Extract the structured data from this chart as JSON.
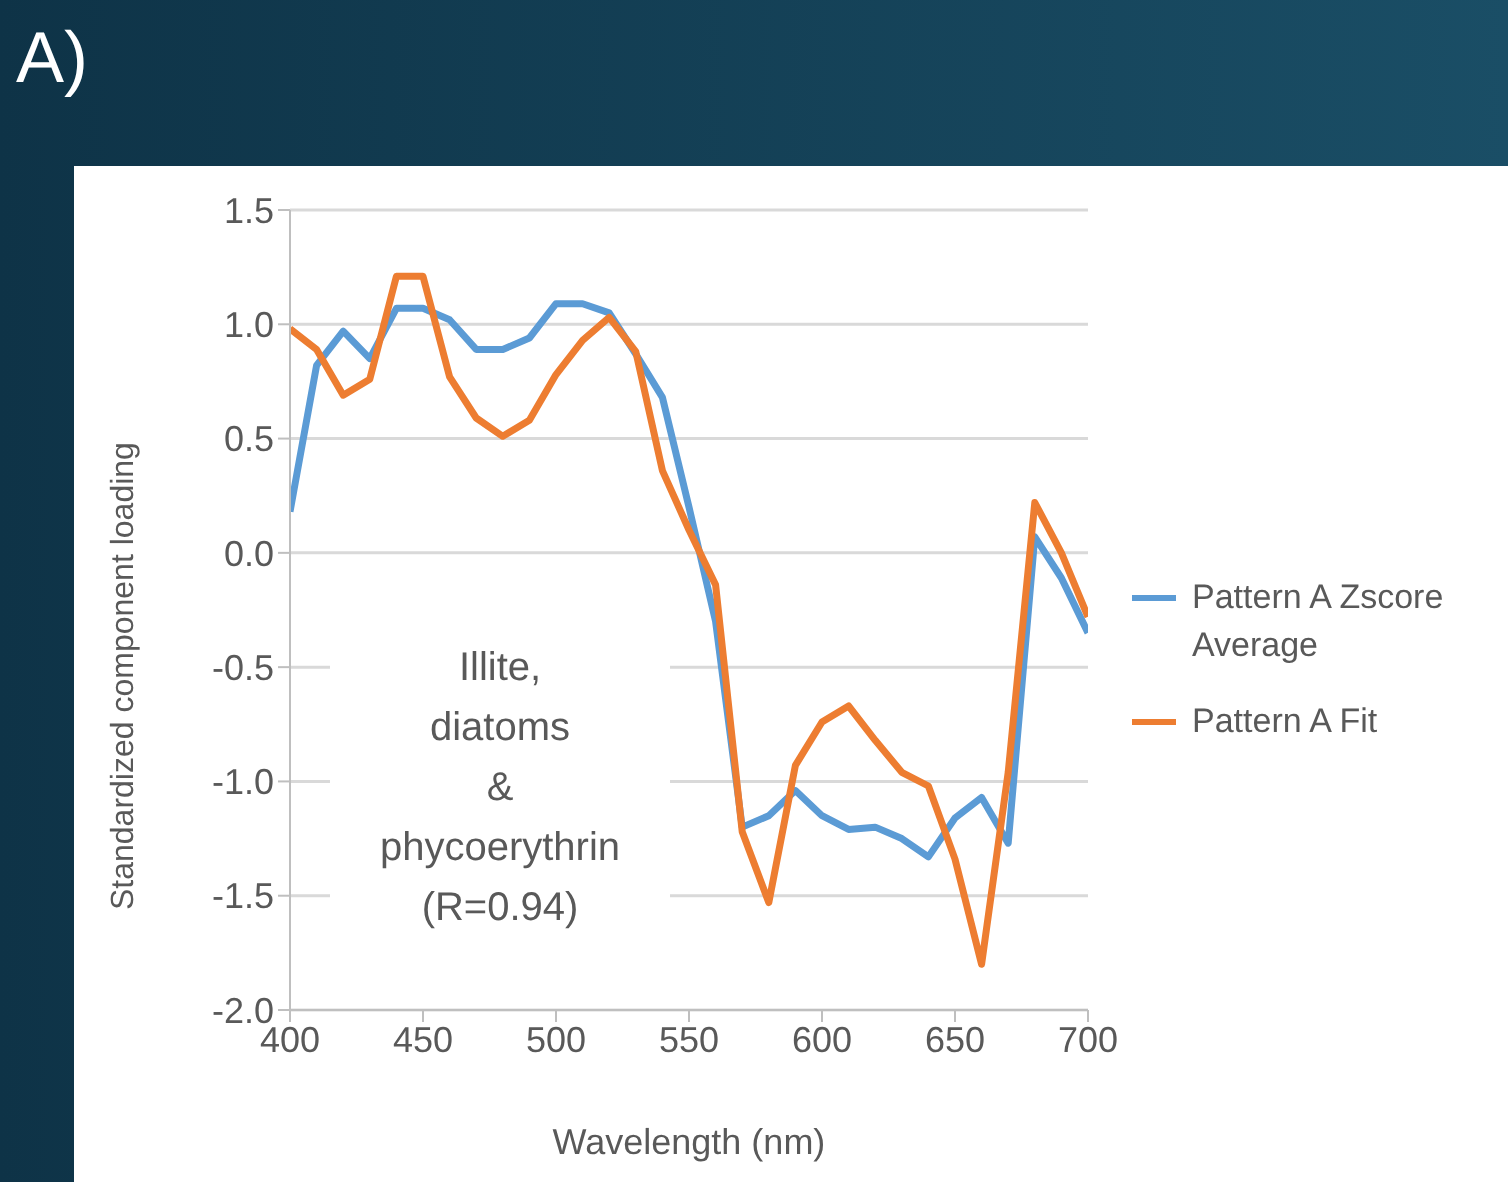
{
  "chart_data": {
    "type": "line",
    "title": "A)",
    "xlabel": "Wavelength (nm)",
    "ylabel": "Standardized component loading",
    "x": [
      400,
      410,
      420,
      430,
      440,
      450,
      460,
      470,
      480,
      490,
      500,
      510,
      520,
      530,
      540,
      550,
      560,
      570,
      580,
      590,
      600,
      610,
      620,
      630,
      640,
      650,
      660,
      670,
      680,
      690,
      700
    ],
    "series": [
      {
        "name": "Pattern A Zscore Average",
        "color": "#5b9bd5",
        "values": [
          0.18,
          0.82,
          0.97,
          0.85,
          1.07,
          1.07,
          1.02,
          0.89,
          0.89,
          0.94,
          1.09,
          1.09,
          1.05,
          0.87,
          0.68,
          0.2,
          -0.3,
          -1.2,
          -1.15,
          -1.04,
          -1.15,
          -1.21,
          -1.2,
          -1.25,
          -1.33,
          -1.16,
          -1.07,
          -1.27,
          0.07,
          -0.11,
          -0.35
        ]
      },
      {
        "name": "Pattern A Fit",
        "color": "#ed7d31",
        "values": [
          0.98,
          0.89,
          0.69,
          0.76,
          1.21,
          1.21,
          0.77,
          0.59,
          0.51,
          0.58,
          0.78,
          0.93,
          1.03,
          0.88,
          0.36,
          0.1,
          -0.14,
          -1.22,
          -1.53,
          -0.93,
          -0.74,
          -0.67,
          -0.82,
          -0.96,
          -1.02,
          -1.34,
          -1.8,
          -0.96,
          0.22,
          0.0,
          -0.28
        ]
      }
    ],
    "xlim": [
      400,
      700
    ],
    "xticks": [
      400,
      450,
      500,
      550,
      600,
      650,
      700
    ],
    "ylim": [
      -2,
      1.5
    ],
    "yticks": [
      {
        "value": 1.5,
        "label": "1.5"
      },
      {
        "value": 1,
        "label": "1.0"
      },
      {
        "value": 0.5,
        "label": "0.5"
      },
      {
        "value": 0,
        "label": "0.0"
      },
      {
        "value": -0.5,
        "label": "-0.5"
      },
      {
        "value": -1,
        "label": "-1.0"
      },
      {
        "value": -1.5,
        "label": "-1.5"
      },
      {
        "value": -2,
        "label": "-2.0"
      }
    ],
    "grid": "y",
    "legend": "right",
    "marker": "none",
    "line_style": "solid",
    "annotations": [
      "Illite, diatoms & phycoerythrin (R=0.94)"
    ]
  }
}
